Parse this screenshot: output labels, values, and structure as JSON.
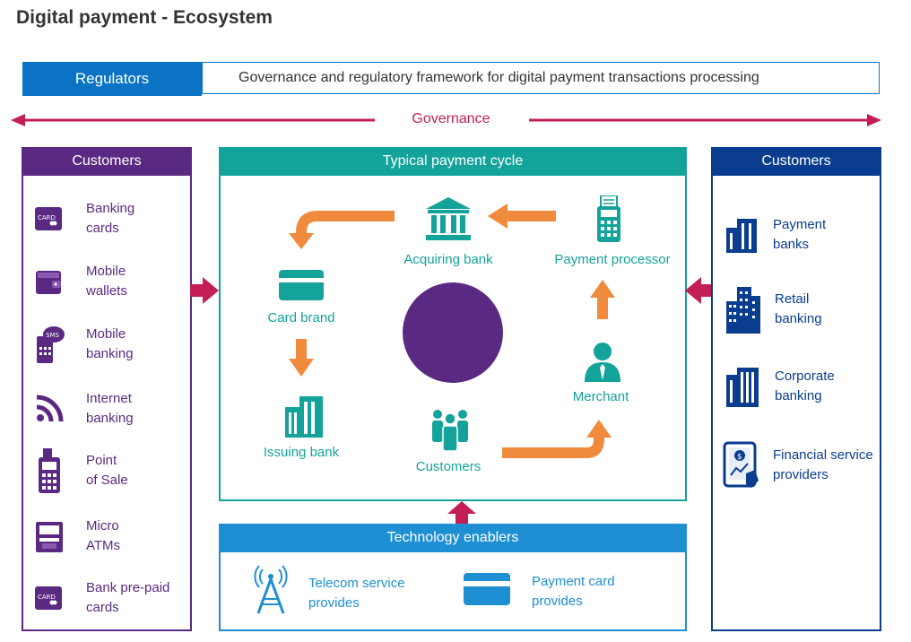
{
  "title": "Digital payment - Ecosystem",
  "regulators": {
    "label": "Regulators",
    "description": "Governance and regulatory framework for digital payment transactions processing"
  },
  "governance_label": "Governance",
  "left_panel": {
    "heading": "Customers",
    "items": [
      {
        "label": "Banking\ncards",
        "icon": "card-icon",
        "icon_text": "CARD"
      },
      {
        "label": "Mobile\nwallets",
        "icon": "wallet-icon"
      },
      {
        "label": "Mobile\nbanking",
        "icon": "sms-phone-icon",
        "icon_text": "SMS"
      },
      {
        "label": "Internet\nbanking",
        "icon": "wifi-icon"
      },
      {
        "label": "Point\nof Sale",
        "icon": "pos-terminal-icon"
      },
      {
        "label": "Micro\nATMs",
        "icon": "atm-icon"
      },
      {
        "label": "Bank pre-paid\ncards",
        "icon": "card-icon",
        "icon_text": "CARD"
      }
    ]
  },
  "cycle": {
    "heading": "Typical payment cycle",
    "nodes": {
      "acquiring_bank": "Acquiring bank",
      "payment_processor": "Payment processor",
      "card_brand": "Card brand",
      "issuing_bank": "Issuing bank",
      "customers": "Customers",
      "merchant": "Merchant"
    }
  },
  "right_panel": {
    "heading": "Customers",
    "items": [
      {
        "label": "Payment\nbanks",
        "icon": "building-icon"
      },
      {
        "label": "Retail\nbanking",
        "icon": "city-buildings-icon"
      },
      {
        "label": "Corporate\nbanking",
        "icon": "office-building-icon"
      },
      {
        "label": "Financial service\nproviders",
        "icon": "tablet-finance-icon"
      }
    ]
  },
  "tech": {
    "heading": "Technology enablers",
    "items": [
      {
        "label": "Telecom service\nprovides",
        "icon": "telecom-tower-icon"
      },
      {
        "label": "Payment card\nprovides",
        "icon": "payment-card-icon"
      }
    ]
  },
  "colors": {
    "purple": "#5a2a82",
    "teal": "#14a39a",
    "navy": "#0a3d8f",
    "blue": "#0a73c3",
    "sky": "#1f8fd4",
    "orange": "#f08a3c",
    "crimson": "#c41f55"
  }
}
